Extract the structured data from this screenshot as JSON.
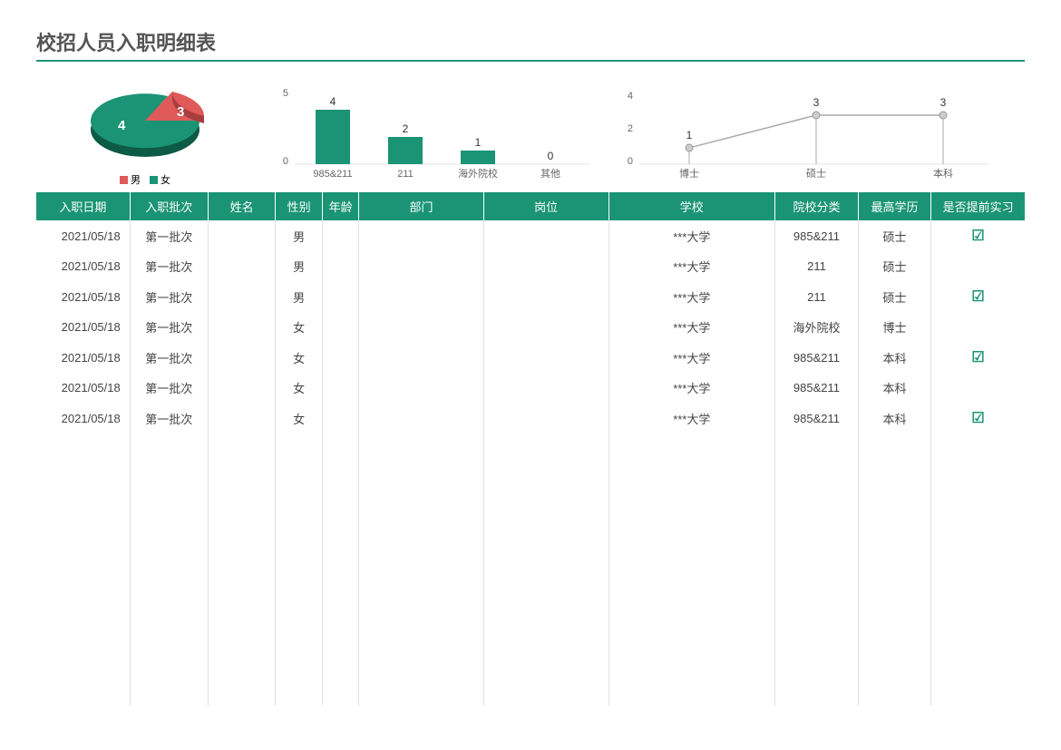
{
  "title": "校招人员入职明细表",
  "colors": {
    "primary": "#1a9474",
    "accent": "#e05a5a",
    "grid": "#e0e0e0",
    "text": "#444",
    "line": "#aaaaaa",
    "marker": "#cccccc"
  },
  "pie_chart": {
    "type": "pie",
    "slices": [
      {
        "label": "男",
        "value": 3,
        "color": "#e05a5a"
      },
      {
        "label": "女",
        "value": 4,
        "color": "#1a9474"
      }
    ],
    "legend_labels": [
      "男",
      "女"
    ]
  },
  "bar_chart": {
    "type": "bar",
    "categories": [
      "985&211",
      "211",
      "海外院校",
      "其他"
    ],
    "values": [
      4,
      2,
      1,
      0
    ],
    "ylim": [
      0,
      5
    ],
    "ytick": 5,
    "bar_color": "#1a9474",
    "label_fontsize": 11
  },
  "line_chart": {
    "type": "line",
    "categories": [
      "博士",
      "硕士",
      "本科"
    ],
    "values": [
      1,
      3,
      3
    ],
    "ylim": [
      0,
      4
    ],
    "yticks": [
      0,
      2,
      4
    ],
    "line_color": "#aaaaaa",
    "marker_color": "#cccccc"
  },
  "table": {
    "columns": [
      "入职日期",
      "入职批次",
      "姓名",
      "性别",
      "年龄",
      "部门",
      "岗位",
      "学校",
      "院校分类",
      "最高学历",
      "是否提前实习"
    ],
    "rows": [
      {
        "date": "2021/05/18",
        "batch": "第一批次",
        "name": "",
        "gender": "男",
        "age": "",
        "dept": "",
        "pos": "",
        "school": "***大学",
        "cat": "985&211",
        "edu": "硕士",
        "intern": true
      },
      {
        "date": "2021/05/18",
        "batch": "第一批次",
        "name": "",
        "gender": "男",
        "age": "",
        "dept": "",
        "pos": "",
        "school": "***大学",
        "cat": "211",
        "edu": "硕士",
        "intern": false
      },
      {
        "date": "2021/05/18",
        "batch": "第一批次",
        "name": "",
        "gender": "男",
        "age": "",
        "dept": "",
        "pos": "",
        "school": "***大学",
        "cat": "211",
        "edu": "硕士",
        "intern": true
      },
      {
        "date": "2021/05/18",
        "batch": "第一批次",
        "name": "",
        "gender": "女",
        "age": "",
        "dept": "",
        "pos": "",
        "school": "***大学",
        "cat": "海外院校",
        "edu": "博士",
        "intern": false
      },
      {
        "date": "2021/05/18",
        "batch": "第一批次",
        "name": "",
        "gender": "女",
        "age": "",
        "dept": "",
        "pos": "",
        "school": "***大学",
        "cat": "985&211",
        "edu": "本科",
        "intern": true
      },
      {
        "date": "2021/05/18",
        "batch": "第一批次",
        "name": "",
        "gender": "女",
        "age": "",
        "dept": "",
        "pos": "",
        "school": "***大学",
        "cat": "985&211",
        "edu": "本科",
        "intern": false
      },
      {
        "date": "2021/05/18",
        "batch": "第一批次",
        "name": "",
        "gender": "女",
        "age": "",
        "dept": "",
        "pos": "",
        "school": "***大学",
        "cat": "985&211",
        "edu": "本科",
        "intern": true
      }
    ]
  }
}
